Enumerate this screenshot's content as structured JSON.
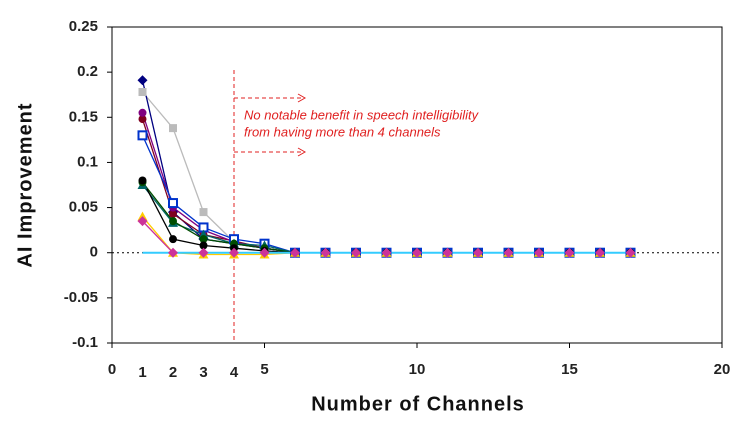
{
  "chart_data": {
    "type": "line",
    "x_label": "Number of Channels",
    "y_label": "AI Improvement",
    "x": [
      1,
      2,
      3,
      4,
      5,
      6,
      7,
      8,
      9,
      10,
      11,
      12,
      13,
      14,
      15,
      16,
      17
    ],
    "series": [
      {
        "color": "#bbbbbb",
        "marker": "square",
        "values": [
          0.178,
          0.138,
          0.045,
          0.012,
          0.005,
          0,
          0,
          0,
          0,
          0,
          0,
          0,
          0,
          0,
          0,
          0,
          0
        ]
      },
      {
        "color": "#000080",
        "marker": "diamond",
        "values": [
          0.191,
          0.045,
          0.015,
          0.01,
          0.005,
          0,
          0,
          0,
          0,
          0,
          0,
          0,
          0,
          0,
          0,
          0,
          0
        ]
      },
      {
        "color": "#800020",
        "marker": "circle",
        "values": [
          0.148,
          0.043,
          0.02,
          0.013,
          0.005,
          0,
          0,
          0,
          0,
          0,
          0,
          0,
          0,
          0,
          0,
          0,
          0
        ]
      },
      {
        "color": "#800080",
        "marker": "circle",
        "values": [
          0.155,
          0.05,
          0.025,
          0.012,
          0.005,
          0,
          0,
          0,
          0,
          0,
          0,
          0,
          0,
          0,
          0,
          0,
          0
        ]
      },
      {
        "color": "#0033cc",
        "marker": "square-open",
        "values": [
          0.13,
          0.055,
          0.028,
          0.015,
          0.01,
          0,
          0,
          0,
          0,
          0,
          0,
          0,
          0,
          0,
          0,
          0,
          0
        ]
      },
      {
        "color": "#006666",
        "marker": "triangle",
        "values": [
          0.075,
          0.033,
          0.02,
          0.01,
          0.008,
          0,
          0,
          0,
          0,
          0,
          0,
          0,
          0,
          0,
          0,
          0,
          0
        ]
      },
      {
        "color": "#004d00",
        "marker": "circle",
        "values": [
          0.078,
          0.035,
          0.015,
          0.01,
          0.005,
          0,
          0,
          0,
          0,
          0,
          0,
          0,
          0,
          0,
          0,
          0,
          0
        ]
      },
      {
        "color": "#000000",
        "marker": "circle",
        "values": [
          0.08,
          0.015,
          0.008,
          0.005,
          0.002,
          0,
          0,
          0,
          0,
          0,
          0,
          0,
          0,
          0,
          0,
          0,
          0
        ]
      },
      {
        "color": "#ffcc00",
        "marker": "triangle",
        "values": [
          0.04,
          0,
          -0.002,
          -0.002,
          -0.002,
          0,
          0,
          0,
          0,
          0,
          0,
          0,
          0,
          0,
          0,
          0,
          0
        ]
      },
      {
        "color": "#cc3399",
        "marker": "diamond",
        "values": [
          0.035,
          0,
          0,
          0,
          0,
          0,
          0,
          0,
          0,
          0,
          0,
          0,
          0,
          0,
          0,
          0,
          0
        ]
      },
      {
        "color": "#33ccff",
        "marker": "none",
        "values": [
          0,
          0,
          0,
          0,
          0,
          0,
          0,
          0,
          0,
          0,
          0,
          0,
          0,
          0,
          0,
          0,
          0
        ]
      }
    ],
    "xlim": [
      0,
      20
    ],
    "xticks": [
      0,
      5,
      10,
      15,
      20
    ],
    "x_marked_ticks": [
      1,
      2,
      3,
      4
    ],
    "ylim": [
      -0.1,
      0.25
    ],
    "yticks": [
      -0.1,
      -0.05,
      0,
      0.05,
      0.1,
      0.15,
      0.2,
      0.25
    ],
    "annotation": {
      "x": 4,
      "color": "#e02020",
      "lines": [
        "No notable benefit in speech intelligibility",
        "from having more than 4 channels"
      ]
    }
  }
}
